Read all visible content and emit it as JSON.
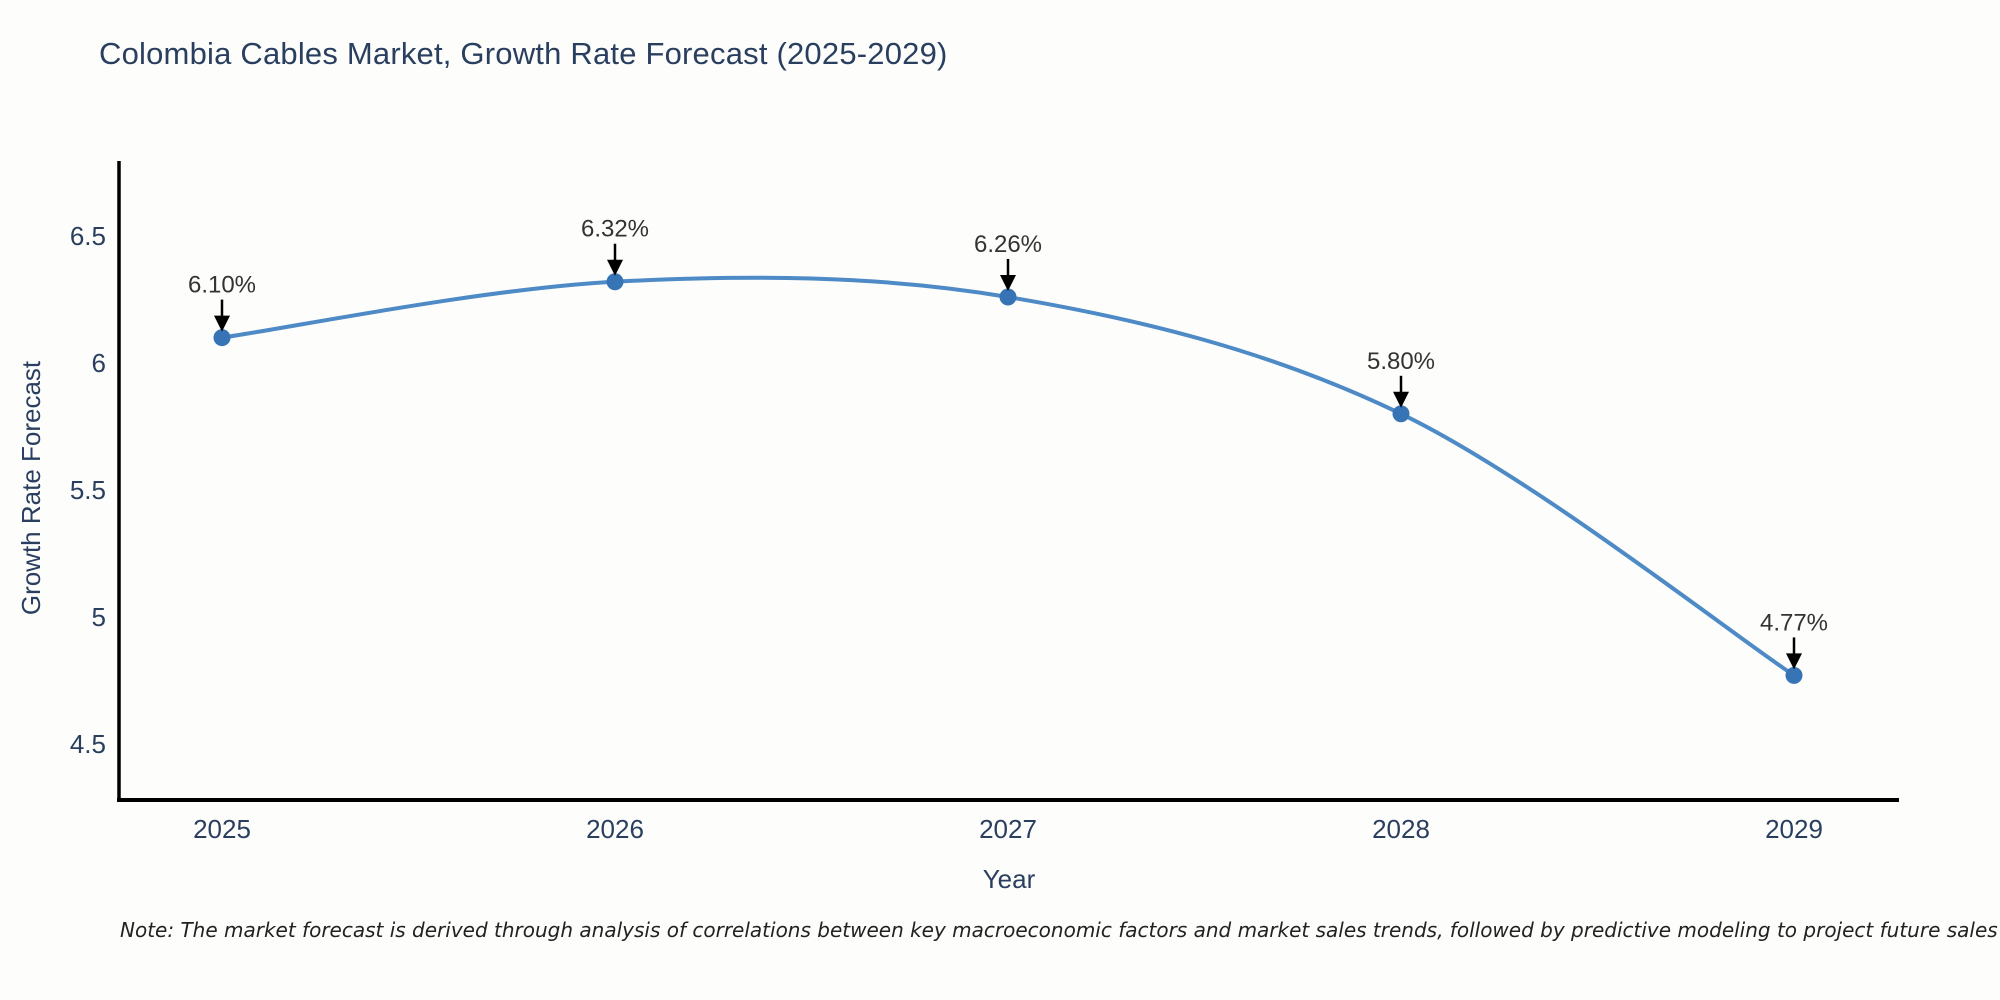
{
  "note": "Note: The market forecast is derived through analysis of correlations between key macroeconomic factors and market sales trends, followed by predictive modeling to project future sales",
  "chart_data": {
    "type": "line",
    "title": "Colombia Cables Market, Growth Rate Forecast (2025-2029)",
    "x": [
      "2025",
      "2026",
      "2027",
      "2028",
      "2029"
    ],
    "values": [
      6.1,
      6.32,
      6.26,
      5.8,
      4.77
    ],
    "point_labels": [
      "6.10%",
      "6.32%",
      "6.26%",
      "5.80%",
      "4.77%"
    ],
    "xlabel": "Year",
    "ylabel": "Growth Rate Forecast",
    "yticks": [
      6.5,
      6.0,
      5.5,
      5.0,
      4.5
    ],
    "ytick_labels": [
      "6.5",
      "6",
      "5.5",
      "5",
      "4.5"
    ],
    "ylim": [
      4.3,
      6.8
    ],
    "line_shape": "spline",
    "grid": false,
    "legend": "none",
    "colors": {
      "line": "#4d8ac6",
      "marker": "#3674b5",
      "axis": "#000000",
      "arrow": "#000000",
      "annotation_text": "#333333",
      "tick_text": "#2a3f5f"
    }
  }
}
